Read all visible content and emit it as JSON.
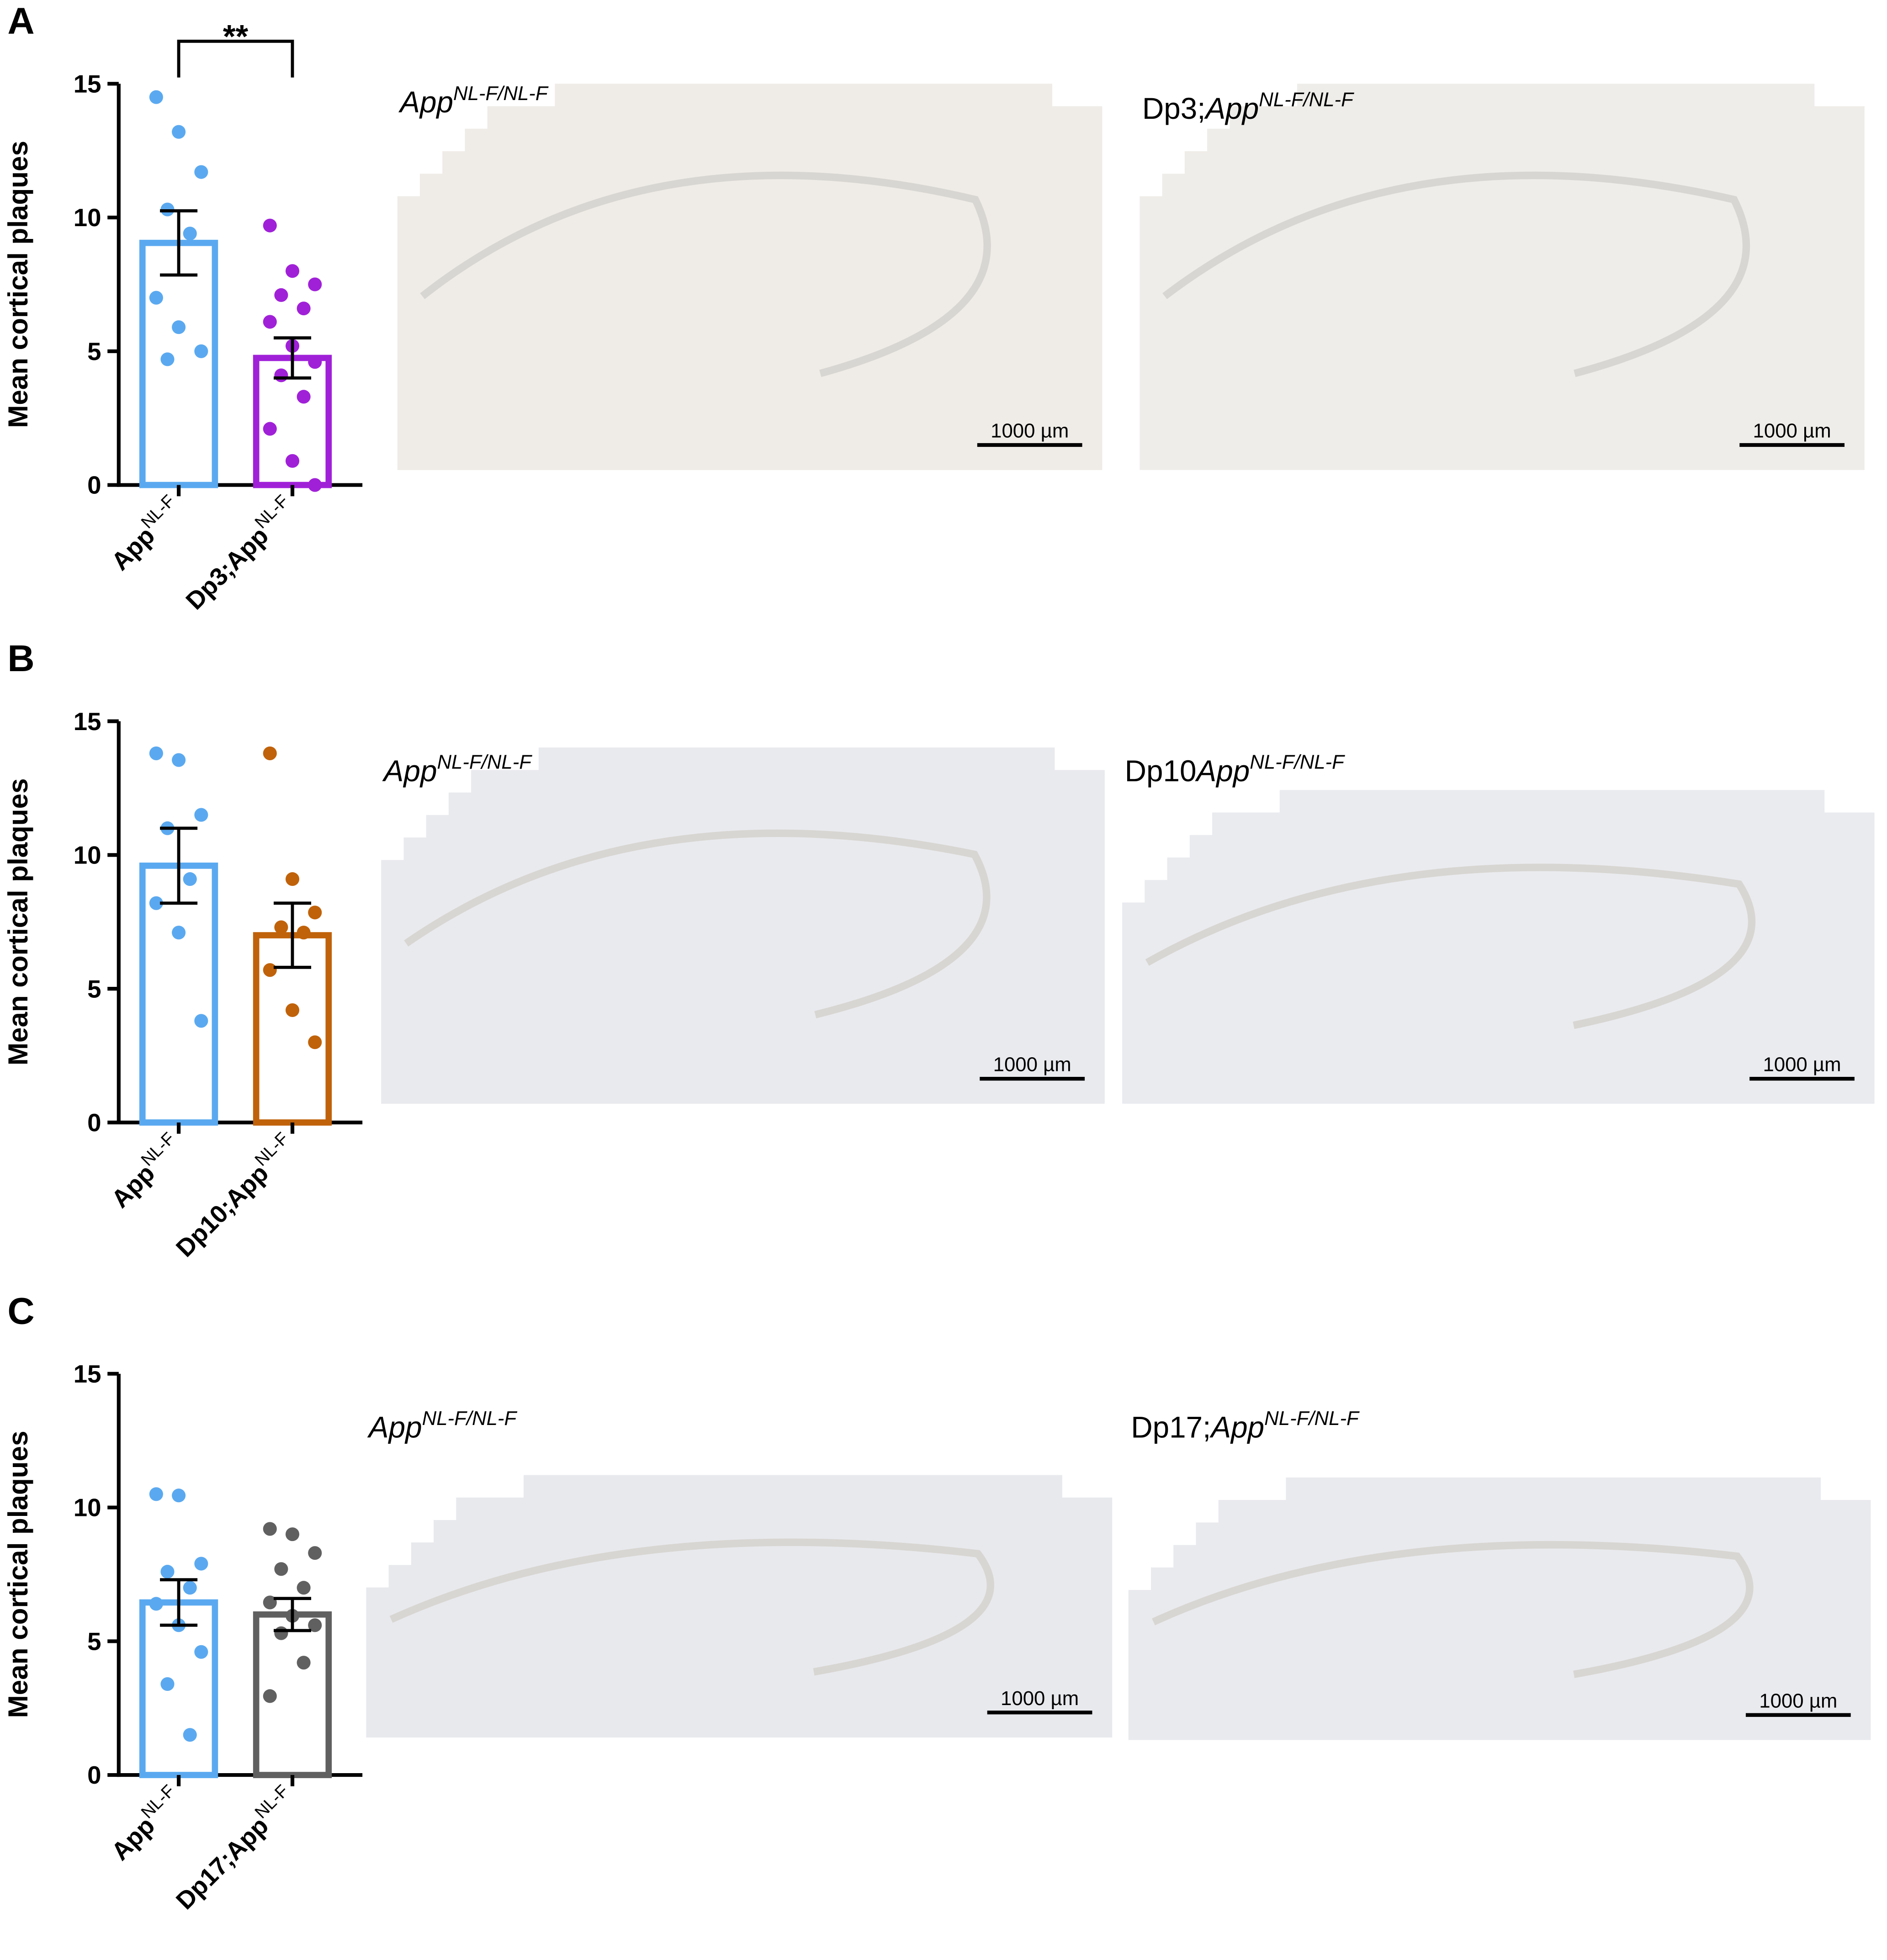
{
  "chart_data": [
    {
      "type": "bar",
      "panel": "A",
      "ylabel": "Mean cortical plaques",
      "ylim": [
        0,
        15
      ],
      "yticks": [
        0,
        5,
        10,
        15
      ],
      "categories": [
        [
          "App",
          "NL-F"
        ],
        [
          "Dp3;App",
          "NL-F"
        ]
      ],
      "values": [
        9.05,
        4.75
      ],
      "errors": [
        1.2,
        0.75
      ],
      "colors": [
        "#5aa9f0",
        "#a020d8"
      ],
      "points": [
        [
          14.5,
          13.2,
          11.7,
          10.3,
          9.4,
          7.0,
          5.9,
          5.0,
          4.7
        ],
        [
          9.7,
          8.0,
          7.5,
          7.1,
          6.6,
          6.1,
          5.2,
          4.6,
          4.1,
          3.3,
          2.1,
          0.9,
          0
        ]
      ],
      "significance": "**",
      "images": [
        {
          "italic": "App",
          "sup": "NL-F/NL-F",
          "scale": "1000 µm"
        },
        {
          "prefix": "Dp3;",
          "italic": "App",
          "sup": "NL-F/NL-F",
          "scale": "1000 µm"
        }
      ]
    },
    {
      "type": "bar",
      "panel": "B",
      "ylabel": "Mean cortical plaques",
      "ylim": [
        0,
        15
      ],
      "yticks": [
        0,
        5,
        10,
        15
      ],
      "categories": [
        [
          "App",
          "NL-F"
        ],
        [
          "Dp10;App",
          "NL-F"
        ]
      ],
      "values": [
        9.6,
        7.0
      ],
      "errors": [
        1.4,
        1.2
      ],
      "colors": [
        "#5aa9f0",
        "#c0620a"
      ],
      "points": [
        [
          13.8,
          13.55,
          11.5,
          11.0,
          9.1,
          8.2,
          7.1,
          3.8
        ],
        [
          13.8,
          9.1,
          7.85,
          7.3,
          7.1,
          5.7,
          4.2,
          3.0
        ]
      ],
      "images": [
        {
          "italic": "App",
          "sup": "NL-F/NL-F",
          "scale": "1000 µm"
        },
        {
          "prefix": "Dp10",
          "italic": "App",
          "sup": "NL-F/NL-F",
          "scale": "1000 µm"
        }
      ]
    },
    {
      "type": "bar",
      "panel": "C",
      "ylabel": "Mean cortical plaques",
      "ylim": [
        0,
        15
      ],
      "yticks": [
        0,
        5,
        10,
        15
      ],
      "categories": [
        [
          "App",
          "NL-F"
        ],
        [
          "Dp17;App",
          "NL-F"
        ]
      ],
      "values": [
        6.45,
        6.0
      ],
      "errors": [
        0.85,
        0.6
      ],
      "colors": [
        "#5aa9f0",
        "#606060"
      ],
      "points": [
        [
          10.5,
          10.45,
          7.9,
          7.6,
          7.0,
          6.4,
          5.6,
          4.6,
          3.4,
          1.5
        ],
        [
          9.2,
          9.0,
          8.3,
          7.7,
          7.0,
          6.45,
          5.95,
          5.6,
          5.3,
          4.2,
          2.95
        ]
      ],
      "images": [
        {
          "italic": "App",
          "sup": "NL-F/NL-F",
          "scale": "1000 µm"
        },
        {
          "prefix": "Dp17;",
          "italic": "App",
          "sup": "NL-F/NL-F",
          "scale": "1000 µm"
        }
      ]
    }
  ]
}
